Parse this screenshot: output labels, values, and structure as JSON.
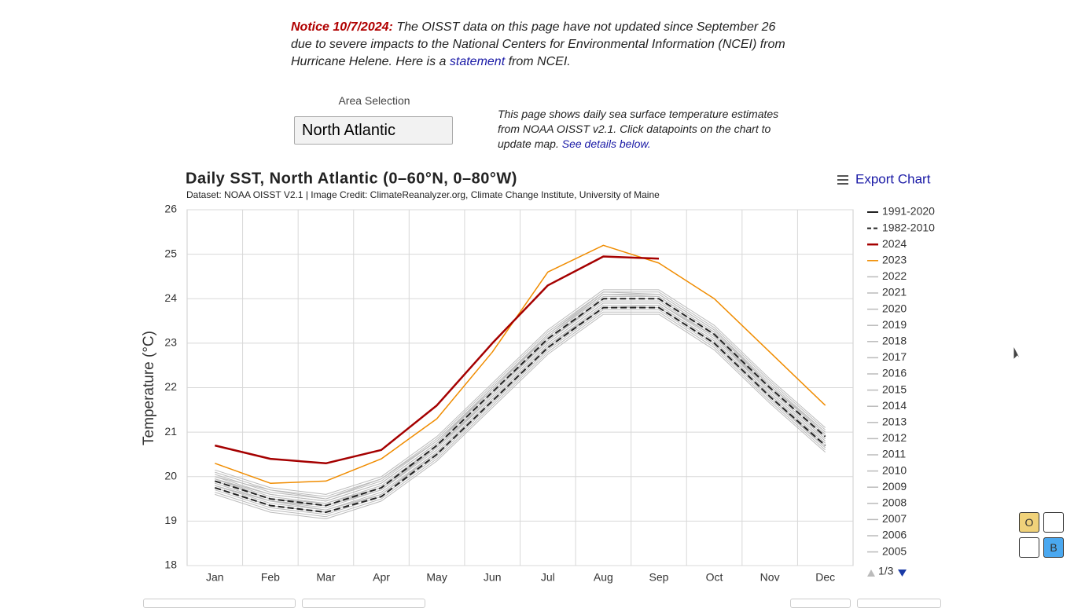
{
  "notice": {
    "label": "Notice 10/7/2024:",
    "text_before": "The OISST data on this page have not updated since September 26 due to severe impacts to the National Centers for Environmental Information (NCEI) from Hurricane Helene. Here is a",
    "link": "statement",
    "text_after": "from NCEI."
  },
  "area_selection": {
    "label": "Area Selection",
    "value": "North Atlantic"
  },
  "description": {
    "text": "This page shows daily sea surface temperature estimates from NOAA OISST v2.1. Click datapoints on the chart to update map.",
    "link": "See details below."
  },
  "export_button": "Export Chart",
  "widgets": [
    "O",
    "B"
  ],
  "chart_data": {
    "type": "line",
    "title": "Daily SST, North Atlantic (0–60°N, 0–80°W)",
    "subtitle": "Dataset: NOAA OISST V2.1 | Image Credit: ClimateReanalyzer.org, Climate Change Institute, University of Maine",
    "y_label": "Temperature (°C)",
    "categories": [
      "Jan",
      "Feb",
      "Mar",
      "Apr",
      "May",
      "Jun",
      "Jul",
      "Aug",
      "Sep",
      "Oct",
      "Nov",
      "Dec"
    ],
    "ylim": [
      18,
      26
    ],
    "yticks": [
      18,
      19,
      20,
      21,
      22,
      23,
      24,
      25,
      26
    ],
    "grid": true,
    "legend_position": "right",
    "legend_pager": "1/3",
    "series": [
      {
        "name": "1991-2020",
        "color": "#222222",
        "dashed": true,
        "width": 2,
        "values": [
          19.9,
          19.5,
          19.35,
          19.75,
          20.7,
          21.9,
          23.1,
          24.0,
          24.0,
          23.2,
          22.0,
          20.9
        ]
      },
      {
        "name": "1982-2010",
        "color": "#222222",
        "dashed": true,
        "width": 2,
        "values": [
          19.75,
          19.35,
          19.2,
          19.55,
          20.5,
          21.7,
          22.9,
          23.8,
          23.8,
          23.0,
          21.8,
          20.7
        ]
      },
      {
        "name": "2024",
        "color": "#a50000",
        "dashed": false,
        "width": 2.5,
        "values": [
          20.7,
          20.4,
          20.3,
          20.6,
          21.6,
          23.0,
          24.3,
          24.95,
          24.9,
          null,
          null,
          null
        ]
      },
      {
        "name": "2023",
        "color": "#f08c00",
        "dashed": false,
        "width": 1.5,
        "values": [
          20.3,
          19.85,
          19.9,
          20.4,
          21.3,
          22.8,
          24.6,
          25.2,
          24.8,
          24.0,
          22.8,
          21.6
        ]
      },
      {
        "name": "2022",
        "color": "#bbbbbb",
        "dashed": false,
        "width": 1,
        "values": [
          20.15,
          19.75,
          19.6,
          20.0,
          20.9,
          22.1,
          23.3,
          24.2,
          24.2,
          23.4,
          22.2,
          21.1
        ]
      },
      {
        "name": "2021",
        "color": "#bbbbbb",
        "dashed": false,
        "width": 1,
        "values": [
          20.05,
          19.65,
          19.5,
          19.9,
          20.8,
          22.0,
          23.2,
          24.1,
          24.1,
          23.3,
          22.1,
          21.0
        ]
      },
      {
        "name": "2020",
        "color": "#bbbbbb",
        "dashed": false,
        "width": 1,
        "values": [
          20.1,
          19.7,
          19.55,
          19.95,
          20.85,
          22.05,
          23.25,
          24.15,
          24.15,
          23.35,
          22.15,
          21.05
        ]
      },
      {
        "name": "2019",
        "color": "#bbbbbb",
        "dashed": false,
        "width": 1,
        "values": [
          19.95,
          19.55,
          19.4,
          19.8,
          20.7,
          21.9,
          23.1,
          24.0,
          24.0,
          23.2,
          22.0,
          20.9
        ]
      },
      {
        "name": "2018",
        "color": "#bbbbbb",
        "dashed": false,
        "width": 1,
        "values": [
          19.8,
          19.4,
          19.25,
          19.65,
          20.55,
          21.75,
          22.95,
          23.85,
          23.85,
          23.05,
          21.85,
          20.75
        ]
      },
      {
        "name": "2017",
        "color": "#bbbbbb",
        "dashed": false,
        "width": 1,
        "values": [
          20.0,
          19.6,
          19.45,
          19.85,
          20.75,
          21.95,
          23.15,
          24.05,
          24.05,
          23.25,
          22.05,
          20.95
        ]
      },
      {
        "name": "2016",
        "color": "#bbbbbb",
        "dashed": false,
        "width": 1,
        "values": [
          19.95,
          19.5,
          19.4,
          19.75,
          20.7,
          21.9,
          23.05,
          24.0,
          24.0,
          23.2,
          21.95,
          20.85
        ]
      },
      {
        "name": "2015",
        "color": "#bbbbbb",
        "dashed": false,
        "width": 1,
        "values": [
          19.75,
          19.35,
          19.2,
          19.6,
          20.5,
          21.7,
          22.9,
          23.8,
          23.8,
          23.0,
          21.8,
          20.7
        ]
      },
      {
        "name": "2014",
        "color": "#bbbbbb",
        "dashed": false,
        "width": 1,
        "values": [
          19.85,
          19.45,
          19.3,
          19.7,
          20.6,
          21.8,
          23.0,
          23.9,
          23.9,
          23.1,
          21.9,
          20.8
        ]
      },
      {
        "name": "2013",
        "color": "#bbbbbb",
        "dashed": false,
        "width": 1,
        "values": [
          19.7,
          19.3,
          19.15,
          19.55,
          20.45,
          21.65,
          22.85,
          23.75,
          23.75,
          22.95,
          21.75,
          20.65
        ]
      },
      {
        "name": "2012",
        "color": "#bbbbbb",
        "dashed": false,
        "width": 1,
        "values": [
          19.9,
          19.5,
          19.35,
          19.75,
          20.65,
          21.85,
          23.05,
          23.95,
          23.95,
          23.15,
          21.95,
          20.85
        ]
      },
      {
        "name": "2011",
        "color": "#bbbbbb",
        "dashed": false,
        "width": 1,
        "values": [
          19.65,
          19.25,
          19.1,
          19.5,
          20.4,
          21.6,
          22.8,
          23.7,
          23.7,
          22.9,
          21.7,
          20.6
        ]
      },
      {
        "name": "2010",
        "color": "#bbbbbb",
        "dashed": false,
        "width": 1,
        "values": [
          20.0,
          19.7,
          19.5,
          19.95,
          20.8,
          21.95,
          23.2,
          24.15,
          24.1,
          23.3,
          22.05,
          21.0
        ]
      },
      {
        "name": "2009",
        "color": "#bbbbbb",
        "dashed": false,
        "width": 1,
        "values": [
          19.8,
          19.45,
          19.25,
          19.6,
          20.55,
          21.75,
          22.95,
          23.8,
          23.85,
          23.05,
          21.85,
          20.75
        ]
      },
      {
        "name": "2008",
        "color": "#bbbbbb",
        "dashed": false,
        "width": 1,
        "values": [
          19.75,
          19.35,
          19.2,
          19.6,
          20.5,
          21.7,
          22.9,
          23.8,
          23.8,
          23.0,
          21.8,
          20.65
        ]
      },
      {
        "name": "2007",
        "color": "#bbbbbb",
        "dashed": false,
        "width": 1,
        "values": [
          19.6,
          19.2,
          19.05,
          19.45,
          20.35,
          21.55,
          22.75,
          23.65,
          23.65,
          22.85,
          21.65,
          20.55
        ]
      },
      {
        "name": "2006",
        "color": "#bbbbbb",
        "dashed": false,
        "width": 1,
        "values": [
          19.85,
          19.45,
          19.35,
          19.7,
          20.65,
          21.8,
          23.0,
          23.9,
          23.9,
          23.15,
          21.9,
          20.8
        ]
      },
      {
        "name": "2005",
        "color": "#bbbbbb",
        "dashed": false,
        "width": 1,
        "values": [
          19.95,
          19.6,
          19.45,
          19.85,
          20.75,
          22.0,
          23.15,
          24.1,
          24.05,
          23.25,
          22.05,
          20.95
        ]
      }
    ]
  }
}
